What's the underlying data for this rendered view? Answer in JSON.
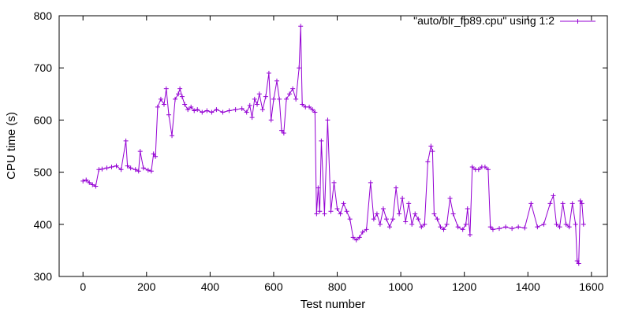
{
  "chart_data": {
    "type": "line",
    "title": "",
    "xlabel": "Test number",
    "ylabel": "CPU time (s)",
    "xlim": [
      -75,
      1650
    ],
    "ylim": [
      300,
      800
    ],
    "xticks": [
      "0",
      "200",
      "400",
      "600",
      "800",
      "1000",
      "1200",
      "1400",
      "1600"
    ],
    "yticks": [
      "300",
      "400",
      "500",
      "600",
      "700",
      "800"
    ],
    "grid": false,
    "legend_position": "top-right",
    "marker": "plus",
    "series": [
      {
        "name": "\"auto/blr_fp89.cpu\" using 1:2",
        "color": "#9400d3",
        "x": [
          0,
          10,
          20,
          30,
          40,
          50,
          60,
          75,
          90,
          105,
          120,
          135,
          140,
          150,
          165,
          175,
          180,
          190,
          205,
          215,
          222,
          228,
          235,
          245,
          255,
          262,
          270,
          280,
          290,
          300,
          305,
          312,
          320,
          330,
          340,
          350,
          360,
          375,
          390,
          405,
          420,
          440,
          460,
          480,
          500,
          515,
          525,
          532,
          540,
          548,
          555,
          565,
          575,
          585,
          592,
          600,
          610,
          618,
          625,
          632,
          640,
          650,
          660,
          670,
          680,
          685,
          690,
          700,
          712,
          722,
          730,
          735,
          740,
          745,
          750,
          760,
          770,
          780,
          790,
          800,
          810,
          820,
          830,
          840,
          850,
          860,
          870,
          880,
          892,
          905,
          915,
          925,
          935,
          945,
          955,
          965,
          975,
          985,
          995,
          1005,
          1015,
          1025,
          1035,
          1045,
          1055,
          1065,
          1075,
          1085,
          1095,
          1100,
          1105,
          1115,
          1125,
          1135,
          1145,
          1155,
          1165,
          1180,
          1195,
          1205,
          1210,
          1218,
          1225,
          1235,
          1245,
          1255,
          1265,
          1275,
          1282,
          1290,
          1310,
          1330,
          1350,
          1370,
          1390,
          1410,
          1430,
          1450,
          1470,
          1480,
          1490,
          1500,
          1510,
          1520,
          1530,
          1540,
          1550,
          1555,
          1560,
          1565,
          1570,
          1575
        ],
        "y": [
          483,
          485,
          480,
          476,
          473,
          505,
          506,
          508,
          510,
          512,
          505,
          560,
          512,
          508,
          505,
          502,
          540,
          508,
          504,
          502,
          535,
          530,
          625,
          640,
          630,
          660,
          610,
          570,
          640,
          650,
          660,
          645,
          630,
          620,
          625,
          618,
          620,
          615,
          618,
          615,
          620,
          615,
          618,
          620,
          622,
          615,
          628,
          605,
          640,
          630,
          650,
          620,
          645,
          690,
          600,
          640,
          675,
          640,
          580,
          575,
          640,
          650,
          660,
          640,
          700,
          780,
          630,
          625,
          625,
          620,
          615,
          420,
          470,
          425,
          560,
          420,
          600,
          425,
          480,
          430,
          420,
          440,
          425,
          410,
          375,
          370,
          375,
          385,
          390,
          480,
          410,
          420,
          400,
          430,
          410,
          395,
          410,
          470,
          420,
          450,
          405,
          440,
          400,
          420,
          410,
          395,
          400,
          520,
          550,
          540,
          420,
          410,
          395,
          390,
          400,
          450,
          420,
          395,
          390,
          400,
          430,
          380,
          510,
          505,
          505,
          510,
          510,
          505,
          395,
          390,
          392,
          395,
          392,
          395,
          393,
          440,
          395,
          400,
          440,
          455,
          400,
          395,
          440,
          400,
          395,
          440,
          400,
          330,
          325,
          445,
          440,
          400
        ]
      }
    ]
  }
}
